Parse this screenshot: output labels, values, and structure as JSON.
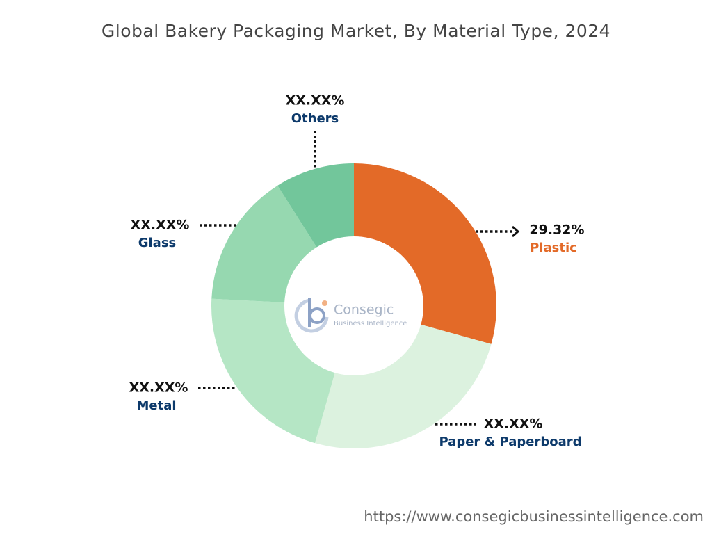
{
  "chart_data": {
    "type": "donut",
    "title": "Global Bakery Packaging Market, By Material Type, 2024",
    "categories": [
      "Plastic",
      "Paper & Paperboard",
      "Metal",
      "Glass",
      "Others"
    ],
    "values": [
      29.32,
      25.1,
      21.4,
      15.2,
      9.0
    ],
    "value_labels": [
      "29.32%",
      "XX.XX%",
      "XX.XX%",
      "XX.XX%",
      "XX.XX%"
    ],
    "colors": [
      "#e36a28",
      "#dcf2df",
      "#b5e6c5",
      "#96d8b0",
      "#72c69b"
    ]
  },
  "watermark": {
    "name": "Consegic",
    "tagline": "Business Intelligence"
  },
  "source": "https://www.consegicbusinessintelligence.com"
}
